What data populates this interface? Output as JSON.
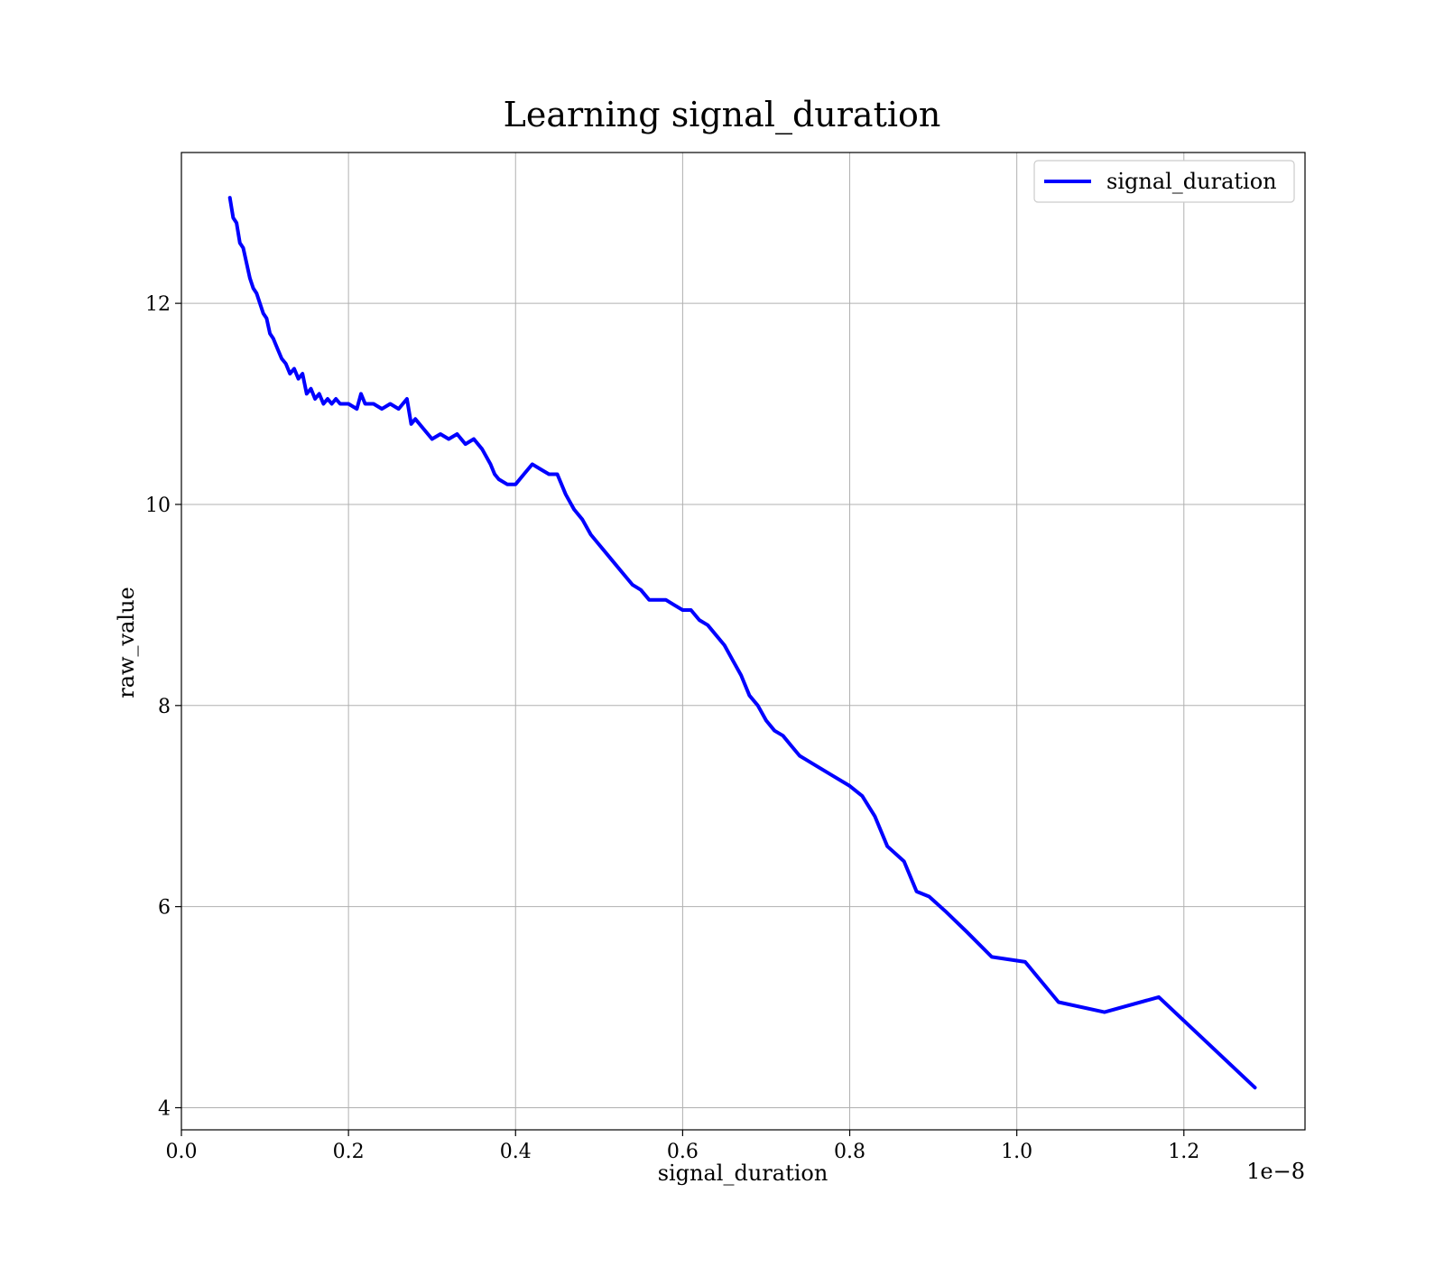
{
  "chart_data": {
    "type": "line",
    "title": "Learning signal_duration",
    "xlabel": "signal_duration",
    "ylabel": "raw_value",
    "x_offset_label": "1e−8",
    "xlim": [
      0,
      1.345
    ],
    "ylim": [
      3.78,
      13.5
    ],
    "x_ticks": [
      0.0,
      0.2,
      0.4,
      0.6,
      0.8,
      1.0,
      1.2
    ],
    "x_tick_labels": [
      "0.0",
      "0.2",
      "0.4",
      "0.6",
      "0.8",
      "1.0",
      "1.2"
    ],
    "y_ticks": [
      4,
      6,
      8,
      10,
      12
    ],
    "y_tick_labels": [
      "4",
      "6",
      "8",
      "10",
      "12"
    ],
    "grid": true,
    "legend_position": "top-right",
    "series": [
      {
        "name": "signal_duration",
        "color": "#0000ff",
        "x": [
          0.058,
          0.062,
          0.066,
          0.07,
          0.074,
          0.078,
          0.082,
          0.086,
          0.09,
          0.094,
          0.098,
          0.102,
          0.106,
          0.11,
          0.115,
          0.12,
          0.125,
          0.13,
          0.135,
          0.14,
          0.145,
          0.15,
          0.155,
          0.16,
          0.165,
          0.17,
          0.175,
          0.18,
          0.185,
          0.19,
          0.2,
          0.21,
          0.215,
          0.22,
          0.23,
          0.24,
          0.25,
          0.26,
          0.27,
          0.275,
          0.28,
          0.29,
          0.3,
          0.31,
          0.32,
          0.33,
          0.34,
          0.35,
          0.36,
          0.37,
          0.375,
          0.38,
          0.39,
          0.4,
          0.41,
          0.42,
          0.43,
          0.44,
          0.45,
          0.46,
          0.47,
          0.48,
          0.49,
          0.5,
          0.51,
          0.52,
          0.53,
          0.54,
          0.55,
          0.56,
          0.57,
          0.58,
          0.59,
          0.6,
          0.61,
          0.62,
          0.63,
          0.64,
          0.65,
          0.66,
          0.67,
          0.68,
          0.69,
          0.7,
          0.71,
          0.72,
          0.73,
          0.74,
          0.76,
          0.78,
          0.8,
          0.815,
          0.83,
          0.845,
          0.865,
          0.88,
          0.895,
          0.915,
          0.94,
          0.97,
          1.01,
          1.05,
          1.105,
          1.17,
          1.285
        ],
        "y": [
          13.05,
          12.85,
          12.8,
          12.6,
          12.55,
          12.4,
          12.25,
          12.15,
          12.1,
          12.0,
          11.9,
          11.85,
          11.7,
          11.65,
          11.55,
          11.45,
          11.4,
          11.3,
          11.35,
          11.25,
          11.3,
          11.1,
          11.15,
          11.05,
          11.1,
          11.0,
          11.05,
          11.0,
          11.05,
          11.0,
          11.0,
          10.95,
          11.1,
          11.0,
          11.0,
          10.95,
          11.0,
          10.95,
          11.05,
          10.8,
          10.85,
          10.75,
          10.65,
          10.7,
          10.65,
          10.7,
          10.6,
          10.65,
          10.55,
          10.4,
          10.3,
          10.25,
          10.2,
          10.2,
          10.3,
          10.4,
          10.35,
          10.3,
          10.3,
          10.1,
          9.95,
          9.85,
          9.7,
          9.6,
          9.5,
          9.4,
          9.3,
          9.2,
          9.15,
          9.05,
          9.05,
          9.05,
          9.0,
          8.95,
          8.95,
          8.85,
          8.8,
          8.7,
          8.6,
          8.45,
          8.3,
          8.1,
          8.0,
          7.85,
          7.75,
          7.7,
          7.6,
          7.5,
          7.4,
          7.3,
          7.2,
          7.1,
          6.9,
          6.6,
          6.45,
          6.15,
          6.1,
          5.95,
          5.75,
          5.5,
          5.45,
          5.05,
          4.95,
          5.1,
          4.2
        ]
      }
    ]
  }
}
